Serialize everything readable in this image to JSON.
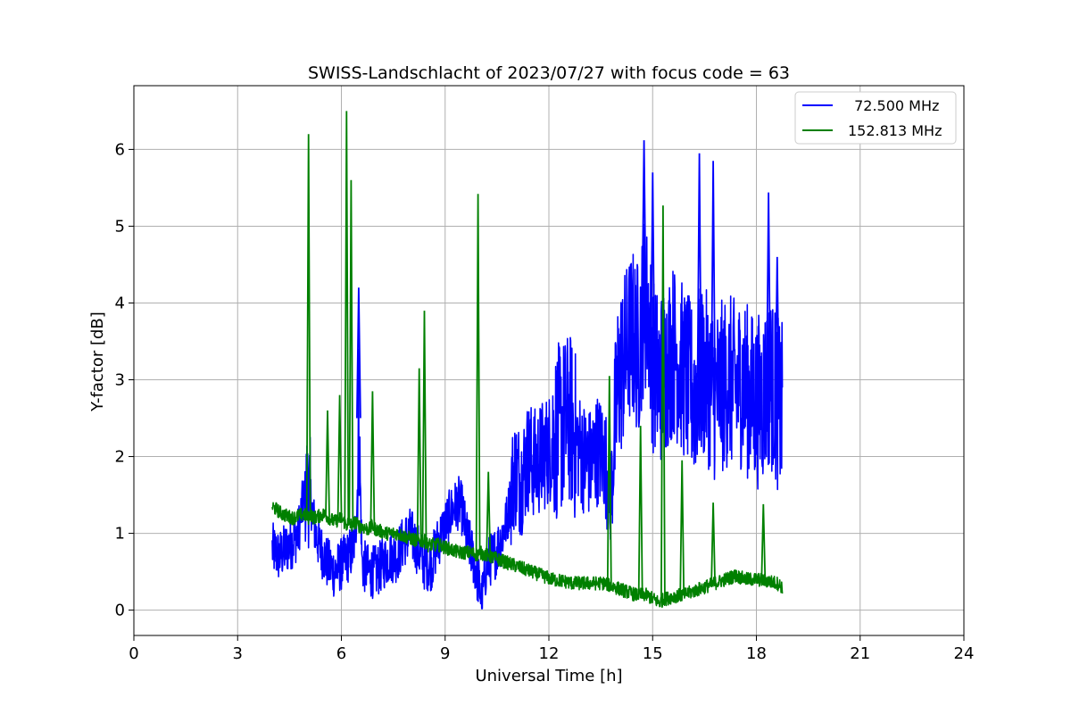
{
  "chart_data": {
    "type": "line",
    "title": "SWISS-Landschlacht of 2023/07/27 with focus code = 63",
    "xlabel": "Universal Time [h]",
    "ylabel": "Y-factor [dB]",
    "xlim": [
      0,
      24
    ],
    "ylim": [
      -0.33,
      6.83
    ],
    "xticks": [
      0,
      3,
      6,
      9,
      12,
      15,
      18,
      21,
      24
    ],
    "yticks": [
      0,
      1,
      2,
      3,
      4,
      5,
      6
    ],
    "grid": true,
    "legend_position": "top-right",
    "series": [
      {
        "name": " 72.500 MHz",
        "color": "#0000ff",
        "x": [
          4.0,
          4.2,
          4.4,
          4.6,
          4.75,
          4.85,
          5.0,
          5.1,
          5.25,
          5.4,
          5.6,
          5.8,
          6.0,
          6.2,
          6.35,
          6.45,
          6.5,
          6.6,
          6.8,
          7.0,
          7.2,
          7.4,
          7.6,
          7.8,
          8.0,
          8.2,
          8.4,
          8.6,
          8.8,
          9.0,
          9.2,
          9.4,
          9.5,
          9.6,
          9.8,
          10.0,
          10.05,
          10.2,
          10.4,
          10.6,
          10.8,
          11.0,
          11.2,
          11.4,
          11.6,
          11.8,
          12.0,
          12.2,
          12.4,
          12.6,
          12.8,
          13.0,
          13.2,
          13.4,
          13.6,
          13.8,
          14.0,
          14.2,
          14.4,
          14.6,
          14.75,
          14.9,
          15.0,
          15.2,
          15.4,
          15.6,
          15.8,
          16.0,
          16.2,
          16.4,
          16.6,
          16.8,
          17.0,
          17.2,
          17.4,
          17.6,
          17.8,
          18.0,
          18.2,
          18.4,
          18.6,
          18.75
        ],
        "y": [
          0.8,
          0.7,
          0.8,
          0.9,
          1.0,
          1.3,
          1.6,
          1.5,
          1.0,
          0.8,
          0.6,
          0.5,
          0.6,
          0.7,
          0.8,
          1.3,
          2.5,
          0.6,
          0.5,
          0.5,
          0.6,
          0.7,
          0.7,
          0.9,
          1.0,
          0.8,
          0.6,
          0.6,
          0.9,
          1.1,
          1.3,
          1.4,
          1.3,
          1.0,
          0.7,
          0.3,
          0.1,
          0.6,
          0.7,
          0.9,
          1.2,
          1.8,
          1.7,
          2.0,
          1.9,
          2.0,
          2.1,
          2.3,
          2.4,
          2.5,
          2.2,
          2.0,
          1.9,
          2.1,
          2.0,
          1.5,
          3.0,
          3.3,
          3.6,
          3.4,
          4.0,
          3.8,
          3.2,
          3.0,
          3.2,
          3.4,
          3.2,
          3.0,
          2.8,
          3.1,
          3.0,
          2.8,
          2.9,
          3.0,
          2.9,
          3.0,
          2.8,
          2.7,
          2.8,
          3.0,
          2.7,
          2.6
        ]
      },
      {
        "name": "152.813 MHz",
        "color": "#008000",
        "x": [
          4.0,
          4.3,
          4.6,
          4.9,
          5.05,
          5.1,
          5.2,
          5.5,
          5.8,
          6.0,
          6.15,
          6.2,
          6.3,
          6.4,
          6.5,
          6.8,
          6.9,
          7.0,
          7.3,
          7.6,
          7.9,
          8.2,
          8.4,
          8.5,
          8.8,
          9.1,
          9.4,
          9.7,
          9.95,
          10.0,
          10.3,
          10.6,
          10.9,
          11.2,
          11.5,
          11.8,
          12.1,
          12.4,
          12.7,
          13.0,
          13.3,
          13.6,
          13.9,
          14.2,
          14.5,
          14.8,
          15.0,
          15.2,
          15.35,
          15.4,
          15.6,
          15.9,
          16.2,
          16.5,
          16.8,
          17.1,
          17.4,
          17.7,
          18.0,
          18.3,
          18.6,
          18.75
        ],
        "y": [
          1.35,
          1.25,
          1.2,
          1.25,
          1.2,
          1.25,
          1.2,
          1.25,
          1.15,
          1.2,
          1.1,
          1.15,
          1.1,
          1.15,
          1.1,
          1.05,
          1.1,
          1.05,
          1.0,
          1.0,
          0.95,
          0.9,
          0.9,
          0.85,
          0.85,
          0.8,
          0.75,
          0.75,
          0.72,
          0.75,
          0.7,
          0.65,
          0.6,
          0.55,
          0.5,
          0.45,
          0.4,
          0.38,
          0.35,
          0.35,
          0.35,
          0.35,
          0.3,
          0.25,
          0.2,
          0.2,
          0.15,
          0.1,
          0.15,
          0.15,
          0.18,
          0.2,
          0.25,
          0.3,
          0.35,
          0.4,
          0.45,
          0.4,
          0.4,
          0.38,
          0.35,
          0.3
        ]
      }
    ],
    "spikes": [
      {
        "series": 1,
        "x": 5.05,
        "y": 6.2
      },
      {
        "series": 1,
        "x": 5.6,
        "y": 2.6
      },
      {
        "series": 1,
        "x": 5.95,
        "y": 2.8
      },
      {
        "series": 1,
        "x": 6.15,
        "y": 6.5
      },
      {
        "series": 1,
        "x": 6.28,
        "y": 5.6
      },
      {
        "series": 1,
        "x": 6.9,
        "y": 2.85
      },
      {
        "series": 1,
        "x": 8.25,
        "y": 3.15
      },
      {
        "series": 1,
        "x": 8.4,
        "y": 3.9
      },
      {
        "series": 1,
        "x": 9.95,
        "y": 5.42
      },
      {
        "series": 1,
        "x": 10.25,
        "y": 1.8
      },
      {
        "series": 1,
        "x": 13.75,
        "y": 3.05
      },
      {
        "series": 1,
        "x": 14.65,
        "y": 2.4
      },
      {
        "series": 1,
        "x": 15.3,
        "y": 5.27
      },
      {
        "series": 1,
        "x": 15.85,
        "y": 1.95
      },
      {
        "series": 1,
        "x": 16.75,
        "y": 1.4
      },
      {
        "series": 1,
        "x": 18.2,
        "y": 1.38
      },
      {
        "series": 0,
        "x": 6.5,
        "y": 4.2
      },
      {
        "series": 0,
        "x": 14.75,
        "y": 6.12
      },
      {
        "series": 0,
        "x": 15.0,
        "y": 5.7
      },
      {
        "series": 0,
        "x": 16.35,
        "y": 5.95
      },
      {
        "series": 0,
        "x": 16.75,
        "y": 5.85
      },
      {
        "series": 0,
        "x": 18.35,
        "y": 5.44
      },
      {
        "series": 0,
        "x": 18.6,
        "y": 4.6
      }
    ]
  }
}
